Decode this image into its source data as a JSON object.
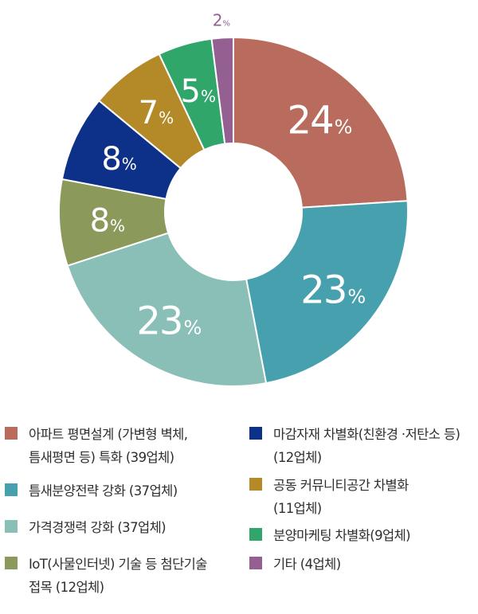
{
  "chart_data": {
    "type": "pie",
    "donut": true,
    "categories": [
      "아파트 평면설계 (가변형 벽체, 틈새평면 등) 특화 (39업체)",
      "틈새분양전략 강화 (37업체)",
      "가격경쟁력 강화 (37업체)",
      "IoT(사물인터넷) 기술 등 첨단기술 접목 (12업체)",
      "마감자재 차별화(친환경 ·저탄소 등) (12업체)",
      "공동 커뮤니티공간 차별화 (11업체)",
      "분양마케팅 차별화(9업체)",
      "기타 (4업체)"
    ],
    "values": [
      24,
      23,
      23,
      8,
      8,
      7,
      5,
      2
    ],
    "labels": [
      "24",
      "23",
      "23",
      "8",
      "8",
      "7",
      "5",
      "2"
    ],
    "unit": "%",
    "colors": [
      "#b96c5d",
      "#46a0ae",
      "#89bfb7",
      "#8b9a5b",
      "#0d3188",
      "#b48a28",
      "#30a66b",
      "#946092"
    ],
    "label_colors": [
      "#ffffff",
      "#ffffff",
      "#ffffff",
      "#ffffff",
      "#ffffff",
      "#ffffff",
      "#ffffff",
      "#946092"
    ],
    "legend_placement": "bottom"
  },
  "legend": [
    {
      "lines": [
        "아파트 평면설계 (가변형 벽체,",
        "틈새평면 등) 특화 (39업체)"
      ],
      "color": "#b96c5d"
    },
    {
      "lines": [
        "틈새분양전략 강화 (37업체)"
      ],
      "color": "#46a0ae"
    },
    {
      "lines": [
        "가격경쟁력 강화 (37업체)"
      ],
      "color": "#89bfb7"
    },
    {
      "lines": [
        "IoT(사물인터넷) 기술 등 첨단기술",
        "접목 (12업체)"
      ],
      "color": "#8b9a5b"
    },
    {
      "lines": [
        "마감자재 차별화(친환경 ·저탄소 등)",
        "(12업체)"
      ],
      "color": "#0d3188"
    },
    {
      "lines": [
        "공동 커뮤니티공간 차별화",
        "(11업체)"
      ],
      "color": "#b48a28"
    },
    {
      "lines": [
        "분양마케팅 차별화(9업체)"
      ],
      "color": "#30a66b"
    },
    {
      "lines": [
        "기타 (4업체)"
      ],
      "color": "#946092"
    }
  ]
}
